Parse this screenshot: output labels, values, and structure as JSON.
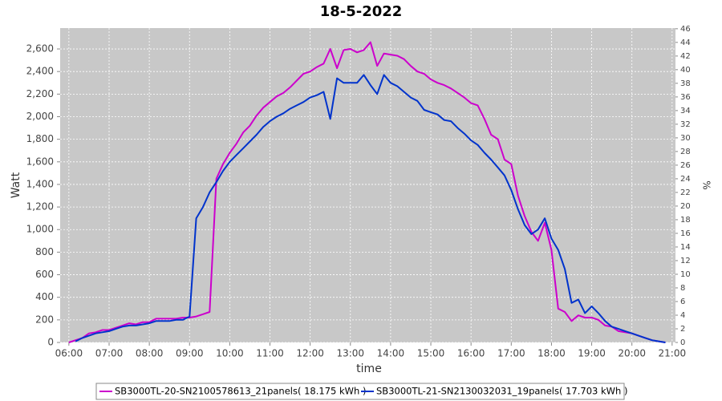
{
  "chart_data": {
    "type": "line",
    "title": "18-5-2022",
    "xlabel": "time",
    "ylabel": "Watt",
    "y2label": "%",
    "x": [
      "06:00",
      "06:10",
      "06:20",
      "06:30",
      "06:40",
      "06:50",
      "07:00",
      "07:10",
      "07:20",
      "07:30",
      "07:40",
      "07:50",
      "08:00",
      "08:10",
      "08:20",
      "08:30",
      "08:40",
      "08:50",
      "09:00",
      "09:10",
      "09:20",
      "09:30",
      "09:40",
      "09:50",
      "10:00",
      "10:10",
      "10:20",
      "10:30",
      "10:40",
      "10:50",
      "11:00",
      "11:10",
      "11:20",
      "11:30",
      "11:40",
      "11:50",
      "12:00",
      "12:10",
      "12:20",
      "12:30",
      "12:40",
      "12:50",
      "13:00",
      "13:10",
      "13:20",
      "13:30",
      "13:40",
      "13:50",
      "14:00",
      "14:10",
      "14:20",
      "14:30",
      "14:40",
      "14:50",
      "15:00",
      "15:10",
      "15:20",
      "15:30",
      "15:40",
      "15:50",
      "16:00",
      "16:10",
      "16:20",
      "16:30",
      "16:40",
      "16:50",
      "17:00",
      "17:10",
      "17:20",
      "17:30",
      "17:40",
      "17:50",
      "18:00",
      "18:10",
      "18:20",
      "18:30",
      "18:40",
      "18:50",
      "19:00",
      "19:10",
      "19:20",
      "19:30",
      "19:40",
      "19:50",
      "20:00",
      "20:10",
      "20:20",
      "20:30",
      "20:40",
      "20:50"
    ],
    "xlim": [
      "05:47",
      "21:05"
    ],
    "xticks": [
      "06:00",
      "07:00",
      "08:00",
      "09:00",
      "10:00",
      "11:00",
      "12:00",
      "13:00",
      "14:00",
      "15:00",
      "16:00",
      "17:00",
      "18:00",
      "19:00",
      "20:00",
      "21:00"
    ],
    "ylim": [
      0,
      2785
    ],
    "yticks": [
      0,
      200,
      400,
      600,
      800,
      {
        "value": 1000,
        "label": "1,000"
      },
      {
        "value": 1200,
        "label": "1,200"
      },
      {
        "value": 1400,
        "label": "1,400"
      },
      {
        "value": 1600,
        "label": "1,600"
      },
      {
        "value": 1800,
        "label": "1,800"
      },
      {
        "value": 2000,
        "label": "2,000"
      },
      {
        "value": 2200,
        "label": "2,200"
      },
      {
        "value": 2400,
        "label": "2,400"
      },
      {
        "value": 2600,
        "label": "2,600"
      }
    ],
    "y2lim": [
      0,
      46.1
    ],
    "y2ticks": [
      0,
      2,
      4,
      6,
      8,
      10,
      12,
      14,
      16,
      18,
      20,
      22,
      24,
      26,
      28,
      30,
      32,
      34,
      36,
      38,
      40,
      42,
      44,
      46
    ],
    "grid": true,
    "series": [
      {
        "name": "SB3000TL-20-SN2100578613_21panels( 18.175 kWh )",
        "color": "#cc00cc",
        "values": [
          0,
          20,
          40,
          80,
          90,
          110,
          110,
          130,
          150,
          170,
          160,
          180,
          180,
          210,
          210,
          210,
          210,
          220,
          220,
          230,
          250,
          270,
          1450,
          1580,
          1680,
          1760,
          1860,
          1920,
          2010,
          2080,
          2130,
          2180,
          2210,
          2260,
          2320,
          2380,
          2400,
          2440,
          2470,
          2600,
          2430,
          2590,
          2600,
          2570,
          2590,
          2660,
          2450,
          2560,
          2550,
          2540,
          2510,
          2450,
          2400,
          2380,
          2330,
          2300,
          2280,
          2250,
          2210,
          2170,
          2120,
          2100,
          1980,
          1840,
          1800,
          1620,
          1580,
          1300,
          1120,
          980,
          900,
          1060,
          820,
          300,
          270,
          190,
          240,
          220,
          220,
          200,
          150,
          140,
          100,
          90,
          80,
          60,
          40,
          20,
          10,
          0
        ]
      },
      {
        "name": "SB3000TL-21-SN2130032031_19panels( 17.703 kWh )",
        "color": "#0033cc",
        "values": [
          null,
          10,
          40,
          60,
          80,
          90,
          100,
          120,
          140,
          150,
          150,
          160,
          170,
          190,
          190,
          190,
          200,
          200,
          230,
          1100,
          1200,
          1330,
          1420,
          1520,
          1600,
          1660,
          1720,
          1780,
          1840,
          1910,
          1960,
          2000,
          2030,
          2070,
          2100,
          2130,
          2170,
          2190,
          2220,
          1980,
          2340,
          2300,
          2300,
          2300,
          2370,
          2280,
          2200,
          2370,
          2300,
          2270,
          2220,
          2170,
          2140,
          2060,
          2040,
          2020,
          1970,
          1960,
          1900,
          1850,
          1790,
          1750,
          1680,
          1620,
          1550,
          1480,
          1350,
          1180,
          1040,
          960,
          1000,
          1100,
          920,
          820,
          650,
          350,
          380,
          260,
          320,
          260,
          190,
          140,
          120,
          100,
          80,
          60,
          40,
          20,
          10,
          0
        ]
      }
    ]
  }
}
